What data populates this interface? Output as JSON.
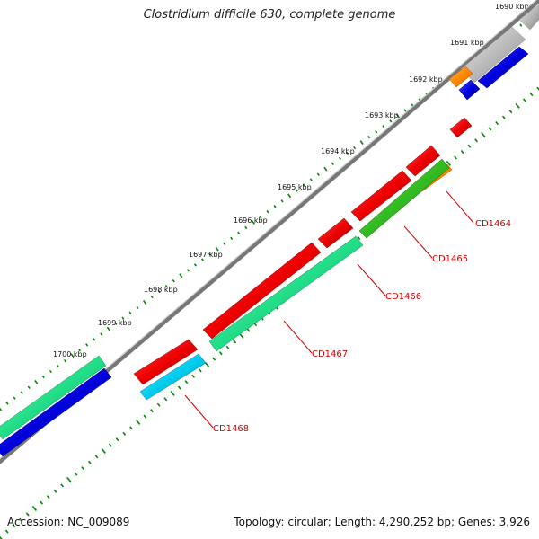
{
  "map": {
    "title": "Clostridium difficile 630, complete genome",
    "accession": "Accession: NC_009089",
    "summary": "Topology: circular; Length: 4,290,252 bp; Genes: 3,926"
  },
  "ticks": [
    "1690 kbp",
    "1691 kbp",
    "1692 kbp",
    "1693 kbp",
    "1694 kbp",
    "1695 kbp",
    "1696 kbp",
    "1697 kbp",
    "1698 kbp",
    "1699 kbp",
    "1700 kbp"
  ],
  "gene_labels": [
    "CD1464",
    "CD1465",
    "CD1466",
    "CD1467",
    "CD1468"
  ],
  "colors": {
    "red": "#ee0000",
    "green": "#22dd88",
    "blue": "#0000dd",
    "cyan": "#00ccee",
    "orange": "#ff8800",
    "grey": "#bbbbbb",
    "backbone": "#777777",
    "tick_green": "#008800"
  }
}
